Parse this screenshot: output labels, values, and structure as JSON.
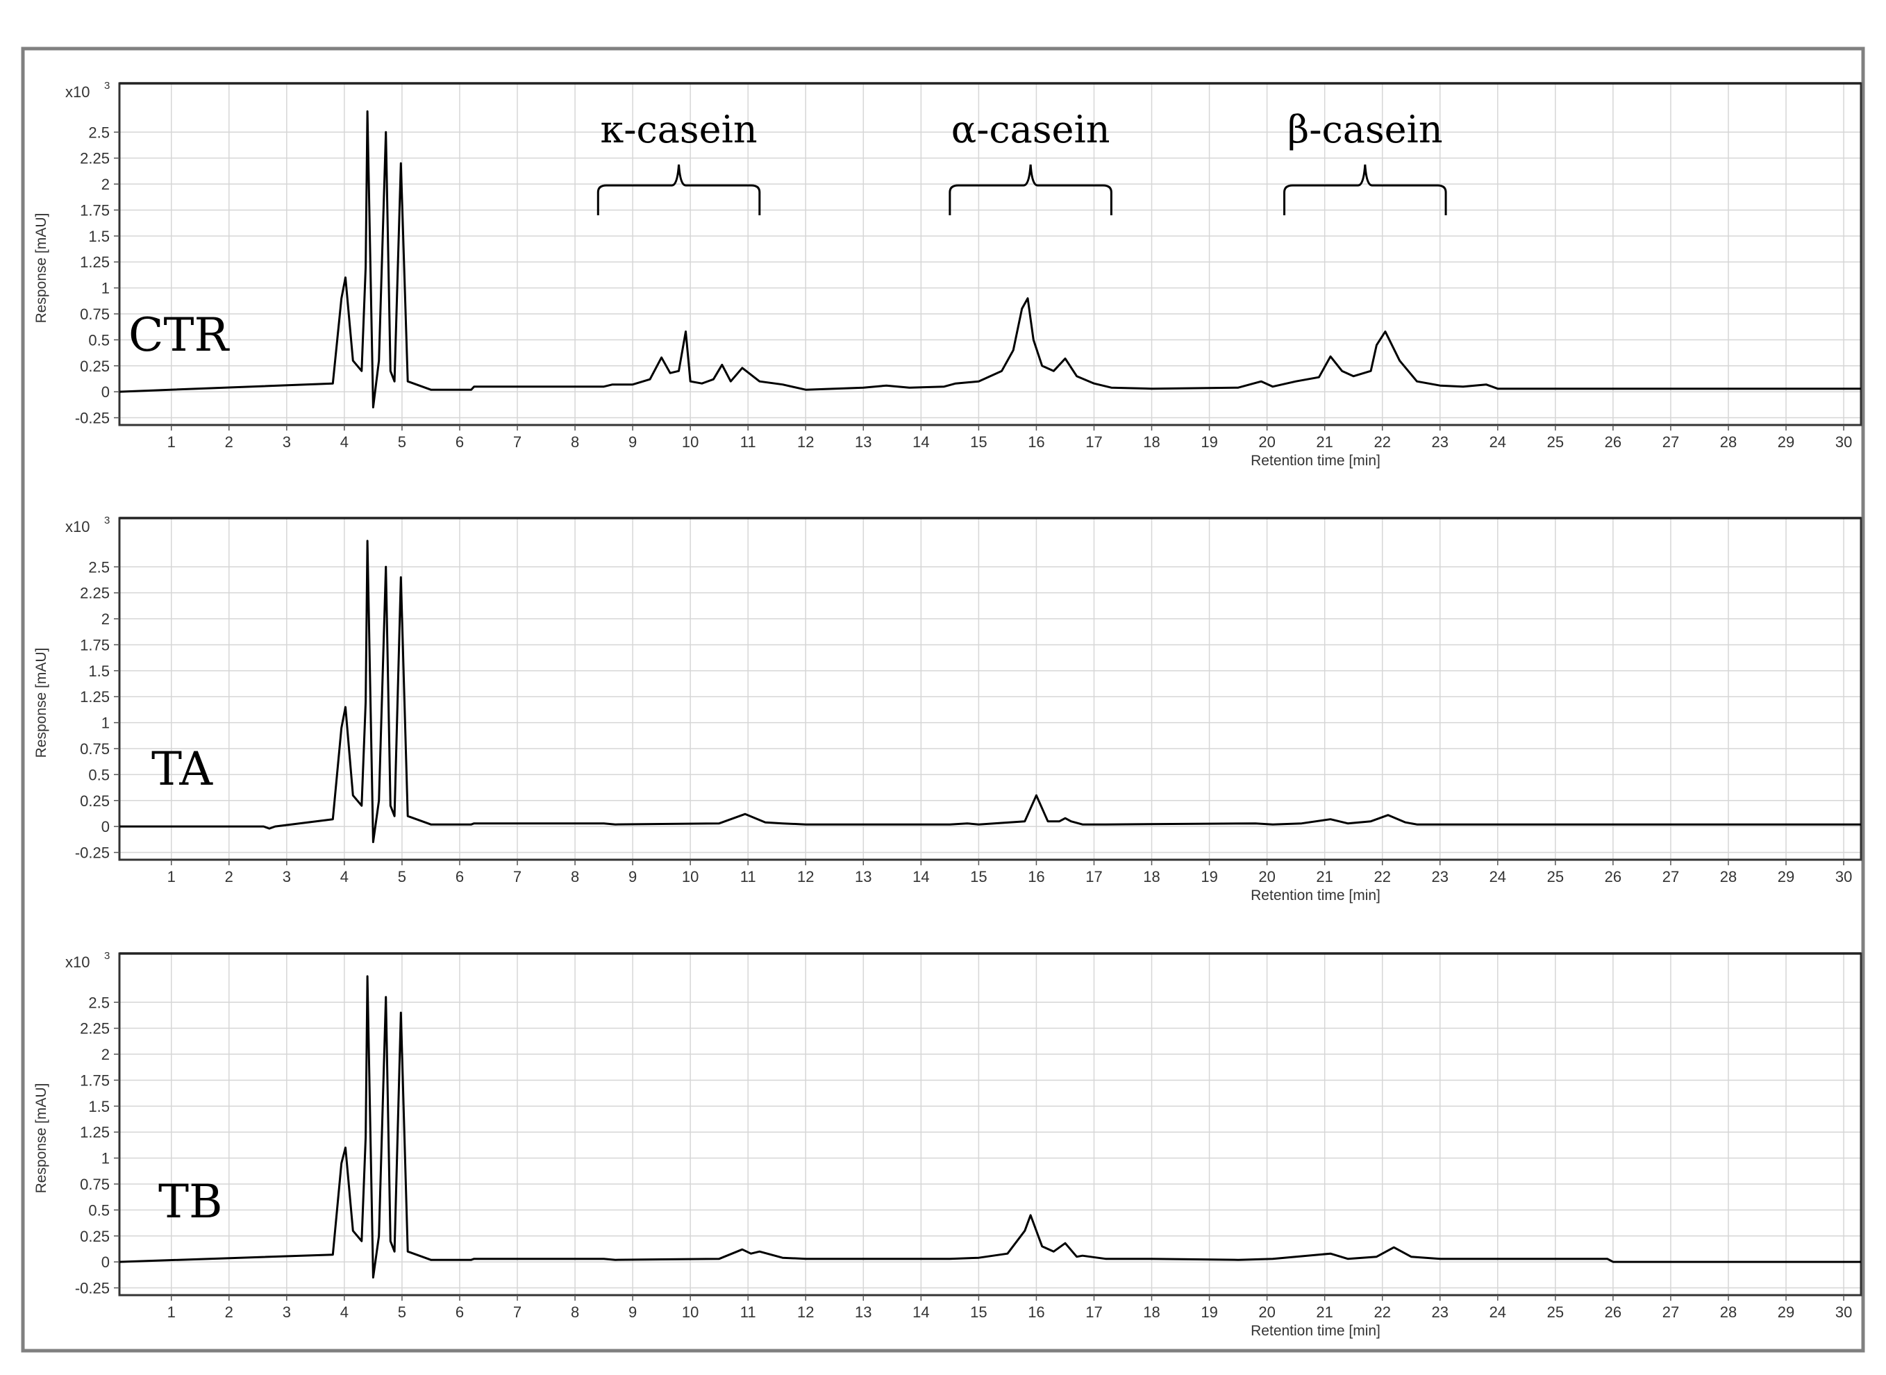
{
  "chart_data": [
    {
      "type": "line",
      "sample_label": "CTR",
      "scale_label": "x10",
      "scale_exponent": "3",
      "xlabel": "Retention time [min]",
      "ylabel": "Response [mAU]",
      "xlim": [
        0.1,
        30.3
      ],
      "ylim": [
        -0.32,
        2.97
      ],
      "xticks": [
        1,
        2,
        3,
        4,
        5,
        6,
        7,
        8,
        9,
        10,
        11,
        12,
        13,
        14,
        15,
        16,
        17,
        18,
        19,
        20,
        21,
        22,
        23,
        24,
        25,
        26,
        27,
        28,
        29,
        30
      ],
      "yticks": [
        -0.25,
        0,
        0.25,
        0.5,
        0.75,
        1,
        1.25,
        1.5,
        1.75,
        2,
        2.25,
        2.5
      ],
      "ytick_labels": [
        "-0.25",
        "0",
        "0.25",
        "0.5",
        "0.75",
        "1",
        "1.25",
        "1.5",
        "1.75",
        "2",
        "2.25",
        "2.5"
      ],
      "grid": true,
      "annotations": [
        {
          "text": "κ-casein",
          "x_range": [
            8.4,
            11.2
          ]
        },
        {
          "text": "α-casein",
          "x_range": [
            14.5,
            17.3
          ]
        },
        {
          "text": "β-casein",
          "x_range": [
            20.3,
            23.1
          ]
        }
      ],
      "x": [
        0.1,
        3.8,
        3.95,
        4.02,
        4.15,
        4.3,
        4.37,
        4.4,
        4.5,
        4.6,
        4.72,
        4.8,
        4.87,
        4.98,
        5.1,
        5.5,
        6.2,
        6.25,
        8.5,
        8.65,
        9.0,
        9.3,
        9.5,
        9.65,
        9.8,
        9.92,
        10.0,
        10.2,
        10.4,
        10.55,
        10.7,
        10.9,
        11.2,
        11.6,
        12.0,
        12.5,
        13.0,
        13.4,
        13.8,
        14.4,
        14.6,
        15.0,
        15.4,
        15.6,
        15.75,
        15.85,
        15.95,
        16.1,
        16.3,
        16.5,
        16.7,
        17.0,
        17.3,
        18.0,
        19.5,
        19.9,
        20.1,
        20.5,
        20.9,
        21.1,
        21.3,
        21.5,
        21.8,
        21.9,
        22.05,
        22.3,
        22.6,
        23.0,
        23.4,
        23.8,
        24.0,
        30.3
      ],
      "y": [
        0.0,
        0.08,
        0.9,
        1.1,
        0.3,
        0.2,
        1.2,
        2.7,
        -0.15,
        0.3,
        2.5,
        0.2,
        0.1,
        2.2,
        0.1,
        0.02,
        0.02,
        0.05,
        0.05,
        0.07,
        0.07,
        0.12,
        0.33,
        0.18,
        0.2,
        0.58,
        0.1,
        0.08,
        0.12,
        0.26,
        0.1,
        0.23,
        0.1,
        0.07,
        0.02,
        0.03,
        0.04,
        0.06,
        0.04,
        0.05,
        0.08,
        0.1,
        0.2,
        0.4,
        0.8,
        0.9,
        0.5,
        0.25,
        0.2,
        0.32,
        0.15,
        0.08,
        0.04,
        0.03,
        0.04,
        0.1,
        0.05,
        0.1,
        0.14,
        0.34,
        0.2,
        0.15,
        0.2,
        0.45,
        0.58,
        0.3,
        0.1,
        0.06,
        0.05,
        0.07,
        0.03,
        0.03
      ]
    },
    {
      "type": "line",
      "sample_label": "TA",
      "scale_label": "x10",
      "scale_exponent": "3",
      "xlabel": "Retention time [min]",
      "ylabel": "Response [mAU]",
      "xlim": [
        0.1,
        30.3
      ],
      "ylim": [
        -0.32,
        2.97
      ],
      "xticks": [
        1,
        2,
        3,
        4,
        5,
        6,
        7,
        8,
        9,
        10,
        11,
        12,
        13,
        14,
        15,
        16,
        17,
        18,
        19,
        20,
        21,
        22,
        23,
        24,
        25,
        26,
        27,
        28,
        29,
        30
      ],
      "yticks": [
        -0.25,
        0,
        0.25,
        0.5,
        0.75,
        1,
        1.25,
        1.5,
        1.75,
        2,
        2.25,
        2.5
      ],
      "ytick_labels": [
        "-0.25",
        "0",
        "0.25",
        "0.5",
        "0.75",
        "1",
        "1.25",
        "1.5",
        "1.75",
        "2",
        "2.25",
        "2.5"
      ],
      "grid": true,
      "x": [
        0.1,
        2.6,
        2.7,
        2.8,
        3.8,
        3.95,
        4.02,
        4.15,
        4.3,
        4.37,
        4.4,
        4.5,
        4.6,
        4.72,
        4.8,
        4.87,
        4.98,
        5.1,
        5.5,
        6.2,
        6.25,
        8.5,
        8.7,
        10.5,
        10.95,
        11.3,
        11.6,
        12.0,
        14.5,
        14.8,
        15.0,
        15.8,
        16.0,
        16.2,
        16.4,
        16.5,
        16.6,
        16.8,
        17.2,
        19.8,
        20.1,
        20.6,
        21.1,
        21.4,
        21.8,
        22.1,
        22.4,
        22.6,
        30.3
      ],
      "y": [
        0.0,
        0.0,
        -0.02,
        0.0,
        0.07,
        0.95,
        1.15,
        0.3,
        0.2,
        1.2,
        2.75,
        -0.15,
        0.25,
        2.5,
        0.2,
        0.1,
        2.4,
        0.1,
        0.02,
        0.02,
        0.03,
        0.03,
        0.02,
        0.03,
        0.12,
        0.04,
        0.03,
        0.02,
        0.02,
        0.03,
        0.02,
        0.05,
        0.3,
        0.05,
        0.05,
        0.08,
        0.05,
        0.02,
        0.02,
        0.03,
        0.02,
        0.03,
        0.07,
        0.03,
        0.05,
        0.11,
        0.04,
        0.02,
        0.02
      ]
    },
    {
      "type": "line",
      "sample_label": "TB",
      "scale_label": "x10",
      "scale_exponent": "3",
      "xlabel": "Retention time [min]",
      "ylabel": "Response [mAU]",
      "xlim": [
        0.1,
        30.3
      ],
      "ylim": [
        -0.32,
        2.97
      ],
      "xticks": [
        1,
        2,
        3,
        4,
        5,
        6,
        7,
        8,
        9,
        10,
        11,
        12,
        13,
        14,
        15,
        16,
        17,
        18,
        19,
        20,
        21,
        22,
        23,
        24,
        25,
        26,
        27,
        28,
        29,
        30
      ],
      "yticks": [
        -0.25,
        0,
        0.25,
        0.5,
        0.75,
        1,
        1.25,
        1.5,
        1.75,
        2,
        2.25,
        2.5
      ],
      "ytick_labels": [
        "-0.25",
        "0",
        "0.25",
        "0.5",
        "0.75",
        "1",
        "1.25",
        "1.5",
        "1.75",
        "2",
        "2.25",
        "2.5"
      ],
      "grid": true,
      "x": [
        0.1,
        3.8,
        3.95,
        4.02,
        4.15,
        4.3,
        4.37,
        4.4,
        4.5,
        4.6,
        4.72,
        4.8,
        4.87,
        4.98,
        5.1,
        5.5,
        6.2,
        6.25,
        8.5,
        8.7,
        10.5,
        10.9,
        11.05,
        11.2,
        11.6,
        12.0,
        14.5,
        15.0,
        15.5,
        15.8,
        15.9,
        16.1,
        16.3,
        16.5,
        16.7,
        16.8,
        17.2,
        18.0,
        19.5,
        20.1,
        21.1,
        21.4,
        21.9,
        22.2,
        22.5,
        23.0,
        25.9,
        26.0,
        30.3
      ],
      "y": [
        0.0,
        0.07,
        0.95,
        1.1,
        0.3,
        0.2,
        1.2,
        2.75,
        -0.15,
        0.25,
        2.55,
        0.2,
        0.1,
        2.4,
        0.1,
        0.02,
        0.02,
        0.03,
        0.03,
        0.02,
        0.03,
        0.12,
        0.08,
        0.1,
        0.04,
        0.03,
        0.03,
        0.04,
        0.08,
        0.3,
        0.45,
        0.15,
        0.1,
        0.18,
        0.05,
        0.06,
        0.03,
        0.03,
        0.02,
        0.03,
        0.08,
        0.03,
        0.05,
        0.14,
        0.05,
        0.03,
        0.03,
        0.0,
        0.0
      ]
    }
  ]
}
